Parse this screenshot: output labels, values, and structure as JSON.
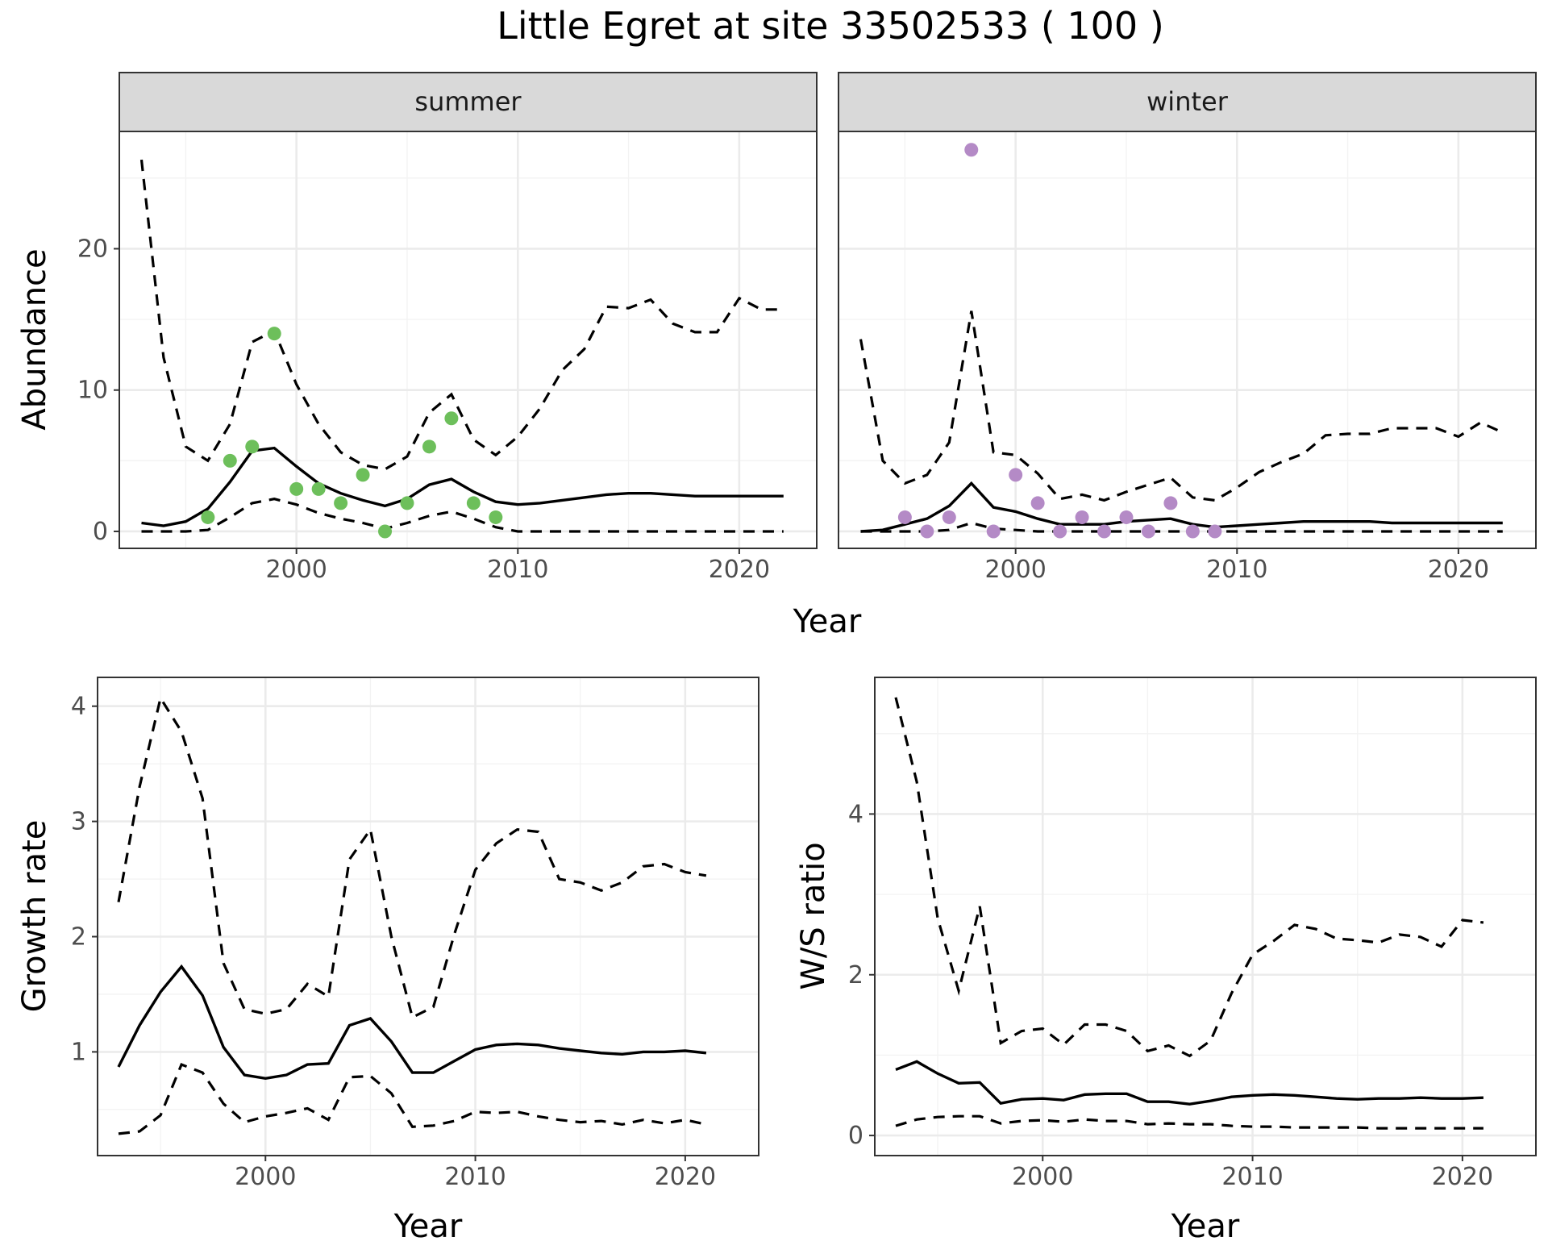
{
  "title": "Little Egret at site 33502533 ( 100 )",
  "colors": {
    "summer_points": "#6dbf5b",
    "winter_points": "#b48ac6",
    "lines": "#000000"
  },
  "chart_data": [
    {
      "id": "abundance",
      "type": "line",
      "facets": [
        "summer",
        "winter"
      ],
      "xlabel": "Year",
      "ylabel": "Abundance",
      "xlim": [
        1992,
        2023.5
      ],
      "ylim": [
        -1.2,
        28.3
      ],
      "xticks": [
        2000,
        2010,
        2020
      ],
      "yticks": [
        0,
        10,
        20
      ],
      "grid": true,
      "panels": [
        {
          "facet": "summer",
          "point_color": "#6dbf5b",
          "points": {
            "x": [
              1996,
              1997,
              1998,
              1999,
              2000,
              2001,
              2002,
              2003,
              2004,
              2005,
              2006,
              2007,
              2008,
              2009
            ],
            "y": [
              1,
              5,
              6,
              14,
              3,
              3,
              2,
              4,
              0,
              2,
              6,
              8,
              2,
              1
            ]
          },
          "estimate": {
            "x": [
              1993,
              1994,
              1995,
              1996,
              1997,
              1998,
              1999,
              2000,
              2001,
              2002,
              2003,
              2004,
              2005,
              2006,
              2007,
              2008,
              2009,
              2010,
              2011,
              2012,
              2013,
              2014,
              2015,
              2016,
              2017,
              2018,
              2019,
              2020,
              2021,
              2022
            ],
            "y": [
              0.6,
              0.4,
              0.7,
              1.6,
              3.5,
              5.7,
              5.9,
              4.6,
              3.4,
              2.7,
              2.2,
              1.8,
              2.3,
              3.3,
              3.7,
              2.8,
              2.1,
              1.9,
              2.0,
              2.2,
              2.4,
              2.6,
              2.7,
              2.7,
              2.6,
              2.5,
              2.5,
              2.5,
              2.5,
              2.5
            ]
          },
          "upper": {
            "x": [
              1993,
              1994,
              1995,
              1996,
              1997,
              1998,
              1999,
              2000,
              2001,
              2002,
              2003,
              2004,
              2005,
              2006,
              2007,
              2008,
              2009,
              2010,
              2011,
              2012,
              2013,
              2014,
              2015,
              2016,
              2017,
              2018,
              2019,
              2020,
              2021,
              2022
            ],
            "y": [
              26.3,
              12.3,
              6.0,
              5.0,
              7.6,
              13.4,
              14.2,
              10.4,
              7.6,
              5.6,
              4.7,
              4.4,
              5.3,
              8.4,
              9.7,
              6.5,
              5.4,
              6.7,
              8.7,
              11.4,
              12.9,
              15.9,
              15.8,
              16.4,
              14.7,
              14.1,
              14.1,
              16.5,
              15.7,
              15.7
            ]
          },
          "lower": {
            "x": [
              1993,
              1994,
              1995,
              1996,
              1997,
              1998,
              1999,
              2000,
              2001,
              2002,
              2003,
              2004,
              2005,
              2006,
              2007,
              2008,
              2009,
              2010,
              2011,
              2012,
              2013,
              2014,
              2015,
              2016,
              2017,
              2018,
              2019,
              2020,
              2021,
              2022
            ],
            "y": [
              0,
              0,
              0,
              0.1,
              1.0,
              2.0,
              2.3,
              1.9,
              1.3,
              0.9,
              0.6,
              0.2,
              0.6,
              1.1,
              1.4,
              0.9,
              0.3,
              0,
              0,
              0,
              0,
              0,
              0,
              0,
              0,
              0,
              0,
              0,
              0,
              0
            ]
          }
        },
        {
          "facet": "winter",
          "point_color": "#b48ac6",
          "points": {
            "x": [
              1995,
              1996,
              1997,
              1998,
              1999,
              2000,
              2001,
              2002,
              2003,
              2004,
              2005,
              2006,
              2007,
              2008,
              2009
            ],
            "y": [
              1,
              0,
              1,
              27,
              0,
              4,
              2,
              0,
              1,
              0,
              1,
              0,
              2,
              0,
              0
            ]
          },
          "estimate": {
            "x": [
              1993,
              1994,
              1995,
              1996,
              1997,
              1998,
              1999,
              2000,
              2001,
              2002,
              2003,
              2004,
              2005,
              2006,
              2007,
              2008,
              2009,
              2010,
              2011,
              2012,
              2013,
              2014,
              2015,
              2016,
              2017,
              2018,
              2019,
              2020,
              2021,
              2022
            ],
            "y": [
              0,
              0.1,
              0.5,
              0.9,
              1.8,
              3.4,
              1.7,
              1.4,
              0.9,
              0.5,
              0.5,
              0.5,
              0.7,
              0.8,
              0.9,
              0.5,
              0.3,
              0.4,
              0.5,
              0.6,
              0.7,
              0.7,
              0.7,
              0.7,
              0.6,
              0.6,
              0.6,
              0.6,
              0.6,
              0.6
            ]
          },
          "upper": {
            "x": [
              1993,
              1994,
              1995,
              1996,
              1997,
              1998,
              1999,
              2000,
              2001,
              2002,
              2003,
              2004,
              2005,
              2006,
              2007,
              2008,
              2009,
              2010,
              2011,
              2012,
              2013,
              2014,
              2015,
              2016,
              2017,
              2018,
              2019,
              2020,
              2021,
              2022
            ],
            "y": [
              13.6,
              5.0,
              3.4,
              4.0,
              6.3,
              15.6,
              5.6,
              5.4,
              4.1,
              2.3,
              2.6,
              2.2,
              2.8,
              3.3,
              3.8,
              2.4,
              2.2,
              3.1,
              4.2,
              4.9,
              5.5,
              6.8,
              6.9,
              6.9,
              7.3,
              7.3,
              7.3,
              6.7,
              7.7,
              7.0
            ]
          },
          "lower": {
            "x": [
              1993,
              1994,
              1995,
              1996,
              1997,
              1998,
              1999,
              2000,
              2001,
              2002,
              2003,
              2004,
              2005,
              2006,
              2007,
              2008,
              2009,
              2010,
              2011,
              2012,
              2013,
              2014,
              2015,
              2016,
              2017,
              2018,
              2019,
              2020,
              2021,
              2022
            ],
            "y": [
              0,
              0,
              0,
              0,
              0.1,
              0.6,
              0.2,
              0.1,
              0,
              0,
              0,
              0,
              0,
              0,
              0,
              0,
              0,
              0,
              0,
              0,
              0,
              0,
              0,
              0,
              0,
              0,
              0,
              0,
              0,
              0
            ]
          }
        }
      ]
    },
    {
      "id": "growth",
      "type": "line",
      "xlabel": "Year",
      "ylabel": "Growth rate",
      "xlim": [
        1992,
        2023.5
      ],
      "ylim": [
        0.1,
        4.25
      ],
      "xticks": [
        2000,
        2010,
        2020
      ],
      "yticks": [
        1,
        2,
        3,
        4
      ],
      "grid": true,
      "estimate": {
        "x": [
          1993,
          1994,
          1995,
          1996,
          1997,
          1998,
          1999,
          2000,
          2001,
          2002,
          2003,
          2004,
          2005,
          2006,
          2007,
          2008,
          2009,
          2010,
          2011,
          2012,
          2013,
          2014,
          2015,
          2016,
          2017,
          2018,
          2019,
          2020,
          2021
        ],
        "y": [
          0.87,
          1.23,
          1.52,
          1.74,
          1.49,
          1.04,
          0.8,
          0.77,
          0.8,
          0.89,
          0.9,
          1.23,
          1.29,
          1.09,
          0.82,
          0.82,
          0.92,
          1.02,
          1.06,
          1.07,
          1.06,
          1.03,
          1.01,
          0.99,
          0.98,
          1.0,
          1.0,
          1.01,
          0.99
        ]
      },
      "upper": {
        "x": [
          1993,
          1994,
          1995,
          1996,
          1997,
          1998,
          1999,
          2000,
          2001,
          2002,
          2003,
          2004,
          2005,
          2006,
          2007,
          2008,
          2009,
          2010,
          2011,
          2012,
          2013,
          2014,
          2015,
          2016,
          2017,
          2018,
          2019,
          2020,
          2021
        ],
        "y": [
          2.3,
          3.3,
          4.07,
          3.78,
          3.2,
          1.77,
          1.37,
          1.33,
          1.37,
          1.59,
          1.48,
          2.67,
          2.93,
          2.0,
          1.3,
          1.39,
          2.02,
          2.58,
          2.81,
          2.93,
          2.91,
          2.5,
          2.47,
          2.4,
          2.47,
          2.61,
          2.63,
          2.56,
          2.53
        ]
      },
      "lower": {
        "x": [
          1993,
          1994,
          1995,
          1996,
          1997,
          1998,
          1999,
          2000,
          2001,
          2002,
          2003,
          2004,
          2005,
          2006,
          2007,
          2008,
          2009,
          2010,
          2011,
          2012,
          2013,
          2014,
          2015,
          2016,
          2017,
          2018,
          2019,
          2020,
          2021
        ],
        "y": [
          0.29,
          0.31,
          0.45,
          0.89,
          0.82,
          0.55,
          0.39,
          0.44,
          0.47,
          0.51,
          0.41,
          0.78,
          0.79,
          0.64,
          0.35,
          0.36,
          0.4,
          0.48,
          0.47,
          0.48,
          0.44,
          0.41,
          0.39,
          0.4,
          0.37,
          0.41,
          0.38,
          0.41,
          0.37
        ]
      }
    },
    {
      "id": "ws_ratio",
      "type": "line",
      "xlabel": "Year",
      "ylabel": "W/S ratio",
      "xlim": [
        1992,
        2023.5
      ],
      "ylim": [
        -0.25,
        5.7
      ],
      "xticks": [
        2000,
        2010,
        2020
      ],
      "yticks": [
        0,
        2,
        4
      ],
      "grid": true,
      "estimate": {
        "x": [
          1993,
          1994,
          1995,
          1996,
          1997,
          1998,
          1999,
          2000,
          2001,
          2002,
          2003,
          2004,
          2005,
          2006,
          2007,
          2008,
          2009,
          2010,
          2011,
          2012,
          2013,
          2014,
          2015,
          2016,
          2017,
          2018,
          2019,
          2020,
          2021
        ],
        "y": [
          0.82,
          0.92,
          0.77,
          0.65,
          0.66,
          0.4,
          0.45,
          0.46,
          0.44,
          0.51,
          0.52,
          0.52,
          0.42,
          0.42,
          0.39,
          0.43,
          0.48,
          0.5,
          0.51,
          0.5,
          0.48,
          0.46,
          0.45,
          0.46,
          0.46,
          0.47,
          0.46,
          0.46,
          0.47
        ]
      },
      "upper": {
        "x": [
          1993,
          1994,
          1995,
          1996,
          1997,
          1998,
          1999,
          2000,
          2001,
          2002,
          2003,
          2004,
          2005,
          2006,
          2007,
          2008,
          2009,
          2010,
          2011,
          2012,
          2013,
          2014,
          2015,
          2016,
          2017,
          2018,
          2019,
          2020,
          2021
        ],
        "y": [
          5.45,
          4.4,
          2.7,
          1.8,
          2.85,
          1.15,
          1.3,
          1.33,
          1.13,
          1.38,
          1.38,
          1.3,
          1.05,
          1.12,
          0.99,
          1.18,
          1.77,
          2.25,
          2.42,
          2.62,
          2.57,
          2.45,
          2.43,
          2.4,
          2.5,
          2.47,
          2.35,
          2.68,
          2.65
        ]
      },
      "lower": {
        "x": [
          1993,
          1994,
          1995,
          1996,
          1997,
          1998,
          1999,
          2000,
          2001,
          2002,
          2003,
          2004,
          2005,
          2006,
          2007,
          2008,
          2009,
          2010,
          2011,
          2012,
          2013,
          2014,
          2015,
          2016,
          2017,
          2018,
          2019,
          2020,
          2021
        ],
        "y": [
          0.12,
          0.2,
          0.23,
          0.24,
          0.24,
          0.15,
          0.18,
          0.19,
          0.17,
          0.2,
          0.18,
          0.18,
          0.14,
          0.15,
          0.14,
          0.14,
          0.12,
          0.11,
          0.11,
          0.1,
          0.1,
          0.1,
          0.1,
          0.09,
          0.09,
          0.09,
          0.09,
          0.09,
          0.09
        ]
      }
    }
  ]
}
